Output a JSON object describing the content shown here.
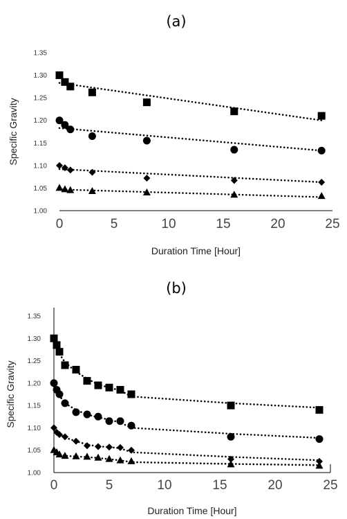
{
  "chart_data": [
    {
      "type": "scatter",
      "panel_label": "(a)",
      "xlabel": "Duration Time [Hour]",
      "ylabel": "Specific Gravity",
      "xlim": [
        0,
        25
      ],
      "ylim": [
        1.0,
        1.35
      ],
      "xticks": [
        "0",
        "5",
        "10",
        "15",
        "20",
        "25"
      ],
      "yticks": [
        "1.00",
        "1.05",
        "1.10",
        "1.15",
        "1.20",
        "1.25",
        "1.30",
        "1.35"
      ],
      "trendline": "linear, dotted",
      "grid": false,
      "legend": "none",
      "series": [
        {
          "marker": "square",
          "x": [
            0,
            0.5,
            1,
            3,
            8,
            16,
            24
          ],
          "y": [
            1.3,
            1.285,
            1.275,
            1.262,
            1.24,
            1.22,
            1.21
          ],
          "fit": [
            1.283,
            1.2
          ]
        },
        {
          "marker": "circle",
          "x": [
            0,
            0.5,
            1,
            3,
            8,
            16,
            24
          ],
          "y": [
            1.2,
            1.19,
            1.18,
            1.165,
            1.155,
            1.135,
            1.133
          ],
          "fit": [
            1.183,
            1.133
          ]
        },
        {
          "marker": "diamond",
          "x": [
            0,
            0.5,
            1,
            3,
            8,
            16,
            24
          ],
          "y": [
            1.1,
            1.095,
            1.09,
            1.085,
            1.072,
            1.067,
            1.063
          ],
          "fit": [
            1.092,
            1.063
          ]
        },
        {
          "marker": "triangle",
          "x": [
            0,
            0.5,
            1,
            3,
            8,
            16,
            24
          ],
          "y": [
            1.05,
            1.047,
            1.045,
            1.043,
            1.04,
            1.035,
            1.032
          ],
          "fit": [
            1.047,
            1.03
          ]
        }
      ]
    },
    {
      "type": "scatter",
      "panel_label": "(b)",
      "xlabel": "Duration Time [Hour]",
      "ylabel": "Specific Gravity",
      "xlim": [
        0,
        25
      ],
      "ylim": [
        1.0,
        1.35
      ],
      "xticks": [
        "0",
        "5",
        "10",
        "15",
        "20",
        "25"
      ],
      "yticks": [
        "1.00",
        "1.05",
        "1.10",
        "1.15",
        "1.20",
        "1.25",
        "1.30",
        "1.35"
      ],
      "trendline": "logarithmic, dotted",
      "grid": false,
      "legend": "none",
      "series": [
        {
          "marker": "square",
          "x": [
            0,
            0.25,
            0.5,
            1,
            2,
            3,
            4,
            5,
            6,
            7,
            16,
            24
          ],
          "y": [
            1.3,
            1.285,
            1.27,
            1.24,
            1.23,
            1.205,
            1.195,
            1.19,
            1.185,
            1.175,
            1.15,
            1.14
          ]
        },
        {
          "marker": "circle",
          "x": [
            0,
            0.25,
            0.5,
            1,
            2,
            3,
            4,
            5,
            6,
            7,
            16,
            24
          ],
          "y": [
            1.2,
            1.185,
            1.175,
            1.155,
            1.135,
            1.13,
            1.125,
            1.115,
            1.115,
            1.105,
            1.08,
            1.075
          ]
        },
        {
          "marker": "diamond",
          "x": [
            0,
            0.25,
            0.5,
            1,
            2,
            3,
            4,
            5,
            6,
            7,
            16,
            24
          ],
          "y": [
            1.1,
            1.09,
            1.085,
            1.08,
            1.07,
            1.06,
            1.058,
            1.057,
            1.056,
            1.05,
            1.03,
            1.025
          ]
        },
        {
          "marker": "triangle",
          "x": [
            0,
            0.25,
            0.5,
            1,
            2,
            3,
            4,
            5,
            6,
            7,
            16,
            24
          ],
          "y": [
            1.05,
            1.045,
            1.04,
            1.037,
            1.036,
            1.035,
            1.033,
            1.03,
            1.027,
            1.025,
            1.018,
            1.015
          ]
        }
      ]
    }
  ]
}
